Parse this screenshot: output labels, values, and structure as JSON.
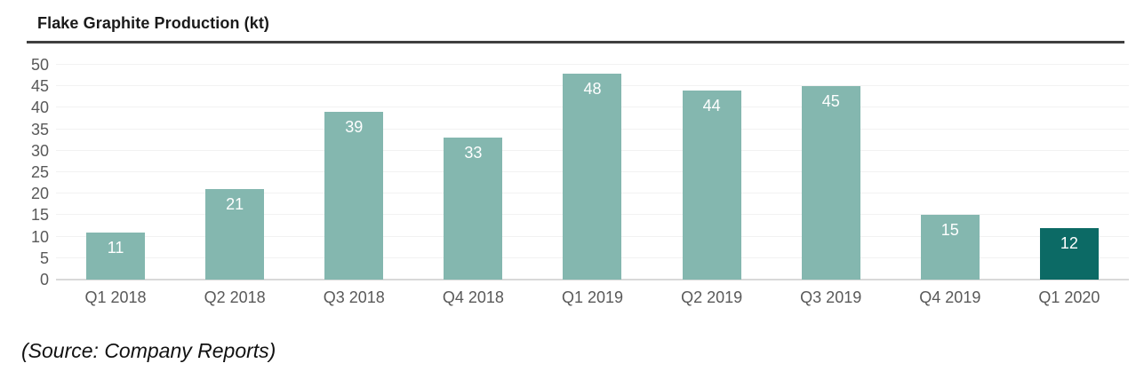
{
  "header": {
    "title": "Flake Graphite Production (kt)"
  },
  "footer": {
    "source_note": "(Source: Company Reports)"
  },
  "chart_data": {
    "type": "bar",
    "title": "Flake Graphite Production (kt)",
    "categories": [
      "Q1 2018",
      "Q2 2018",
      "Q3 2018",
      "Q4 2018",
      "Q1 2019",
      "Q2 2019",
      "Q3 2019",
      "Q4 2019",
      "Q1 2020"
    ],
    "values": [
      11,
      21,
      39,
      33,
      48,
      44,
      45,
      15,
      12
    ],
    "highlight_index": 8,
    "xlabel": "",
    "ylabel": "",
    "ylim": [
      0,
      50
    ],
    "yticks": [
      0,
      5,
      10,
      15,
      20,
      25,
      30,
      35,
      40,
      45,
      50
    ],
    "grid": true,
    "legend_position": "none",
    "colors": {
      "bar": "#84b7af",
      "highlight_bar": "#0c6a65",
      "value_label": "#ffffff",
      "axis_text": "#595959",
      "gridline": "#f2f2f2",
      "baseline": "#d9d9d9",
      "title_rule": "#404040"
    }
  }
}
